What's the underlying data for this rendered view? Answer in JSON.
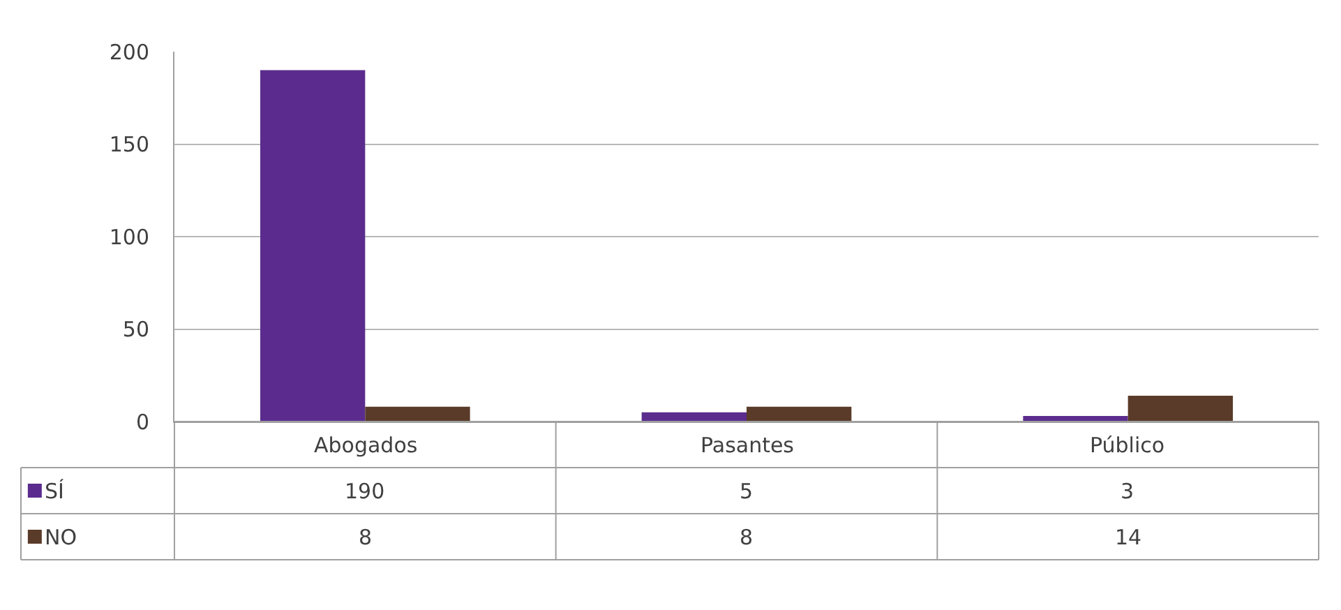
{
  "chart_data": {
    "type": "bar",
    "categories": [
      "Abogados",
      "Pasantes",
      "Público"
    ],
    "series": [
      {
        "name": "SÍ",
        "color": "#5b2c8e",
        "values": [
          190,
          5,
          3
        ]
      },
      {
        "name": "NO",
        "color": "#5a3b29",
        "values": [
          8,
          8,
          14
        ]
      }
    ],
    "ylim": [
      0,
      200
    ],
    "yticks": [
      0,
      50,
      100,
      150,
      200
    ],
    "grid": "y",
    "legend": "bottom left",
    "data_labels": true
  }
}
